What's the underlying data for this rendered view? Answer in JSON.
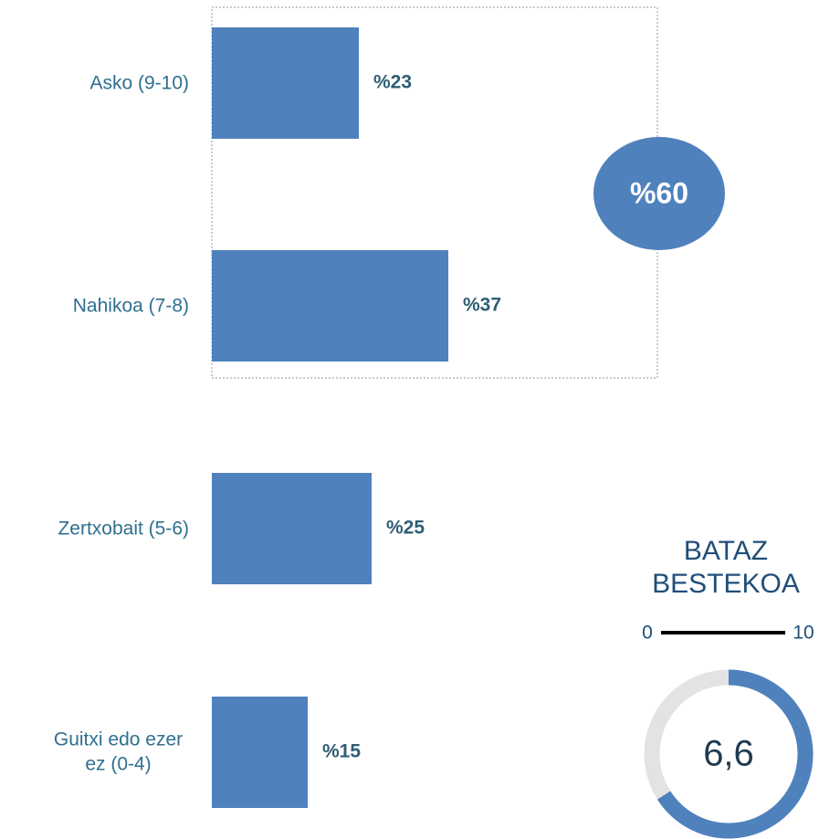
{
  "chart_data": {
    "type": "bar",
    "categories": [
      "Asko (9-10)",
      "Nahikoa (7-8)",
      "Zertxobait (5-6)",
      "Guitxi edo ezer ez (0-4)"
    ],
    "values": [
      23,
      37,
      25,
      15
    ],
    "value_labels": [
      "%23",
      "%37",
      "%25",
      "%15"
    ],
    "color": "#4f81bd",
    "group_total": {
      "value": 60,
      "label": "%60"
    },
    "average": {
      "title": "BATAZ BESTEKOA",
      "value": 6.6,
      "label": "6,6",
      "range": [
        0,
        10
      ]
    }
  }
}
